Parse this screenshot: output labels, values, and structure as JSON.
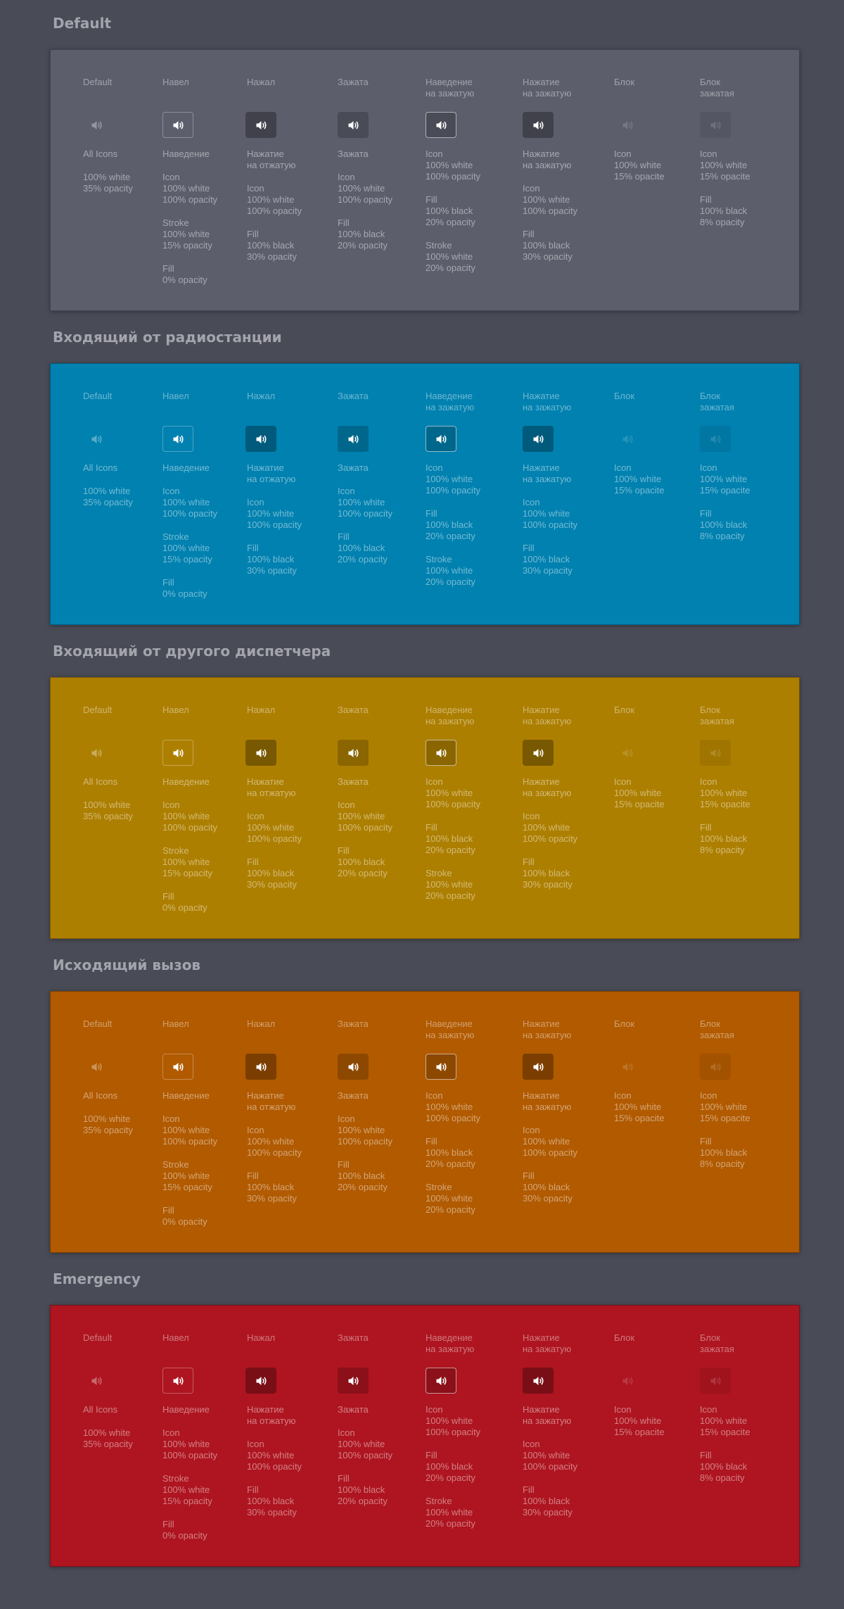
{
  "colors": {
    "page_background": "#494b57",
    "panels": [
      "#5c5e6c",
      "#0081b0",
      "#ad7f01",
      "#b15a00",
      "#ae1520"
    ]
  },
  "icon_name": "speaker-volume-icon",
  "columns": [
    {
      "id": "default",
      "header": [
        "Default"
      ],
      "icon_opacity": 0.35,
      "fill": "none",
      "stroke": "none",
      "desc": [
        [
          "All Icons"
        ],
        [
          "100% white",
          "35% opacity"
        ]
      ]
    },
    {
      "id": "hover",
      "header": [
        "Навел"
      ],
      "icon_opacity": 1.0,
      "fill": "none",
      "stroke": "15% white",
      "desc": [
        [
          "Наведение"
        ],
        [
          "Icon",
          "100% white",
          "100% opacity"
        ],
        [
          "Stroke",
          "100% white",
          "15% opacity"
        ],
        [
          "Fill",
          "0% opacity"
        ]
      ]
    },
    {
      "id": "pressed",
      "header": [
        "Нажал"
      ],
      "icon_opacity": 1.0,
      "fill": "30% black",
      "stroke": "none",
      "desc": [
        [
          "Нажатие",
          "на отжатую"
        ],
        [
          "Icon",
          "100% white",
          "100% opacity"
        ],
        [
          "Fill",
          "100% black",
          "30% opacity"
        ]
      ]
    },
    {
      "id": "latched",
      "header": [
        "Зажата"
      ],
      "icon_opacity": 1.0,
      "fill": "20% black",
      "stroke": "none",
      "desc": [
        [
          "Зажата"
        ],
        [
          "Icon",
          "100% white",
          "100% opacity"
        ],
        [
          "Fill",
          "100% black",
          "20% opacity"
        ]
      ]
    },
    {
      "id": "hover-latched",
      "header": [
        "Наведение",
        "на зажатую"
      ],
      "icon_opacity": 1.0,
      "fill": "20% black",
      "stroke": "20% white",
      "desc": [
        [
          "Icon",
          "100% white",
          "100% opacity"
        ],
        [
          "Fill",
          "100% black",
          "20% opacity"
        ],
        [
          "Stroke",
          "100% white",
          "20% opacity"
        ]
      ]
    },
    {
      "id": "press-latched",
      "header": [
        "Нажатие",
        "на зажатую"
      ],
      "icon_opacity": 1.0,
      "fill": "30% black",
      "stroke": "none",
      "desc": [
        [
          "Нажатие",
          "на зажатую"
        ],
        [
          "Icon",
          "100% white",
          "100% opacity"
        ],
        [
          "Fill",
          "100% black",
          "30% opacity"
        ]
      ]
    },
    {
      "id": "disabled",
      "header": [
        "Блок"
      ],
      "icon_opacity": 0.15,
      "fill": "none",
      "stroke": "none",
      "desc": [
        [
          "Icon",
          "100% white",
          "15% opacite"
        ]
      ]
    },
    {
      "id": "disabled-latched",
      "header": [
        "Блок",
        "зажатая"
      ],
      "icon_opacity": 0.15,
      "fill": "8% black",
      "stroke": "none",
      "desc": [
        [
          "Icon",
          "100% white",
          "15% opacite"
        ],
        [
          "Fill",
          "100% black",
          "8% opacity"
        ]
      ]
    }
  ],
  "sections": [
    {
      "title": "Default"
    },
    {
      "title": "Входящий от радиостанции"
    },
    {
      "title": "Входящий от другого диспетчера"
    },
    {
      "title": "Исходящий вызов"
    },
    {
      "title": "Emergency"
    }
  ]
}
